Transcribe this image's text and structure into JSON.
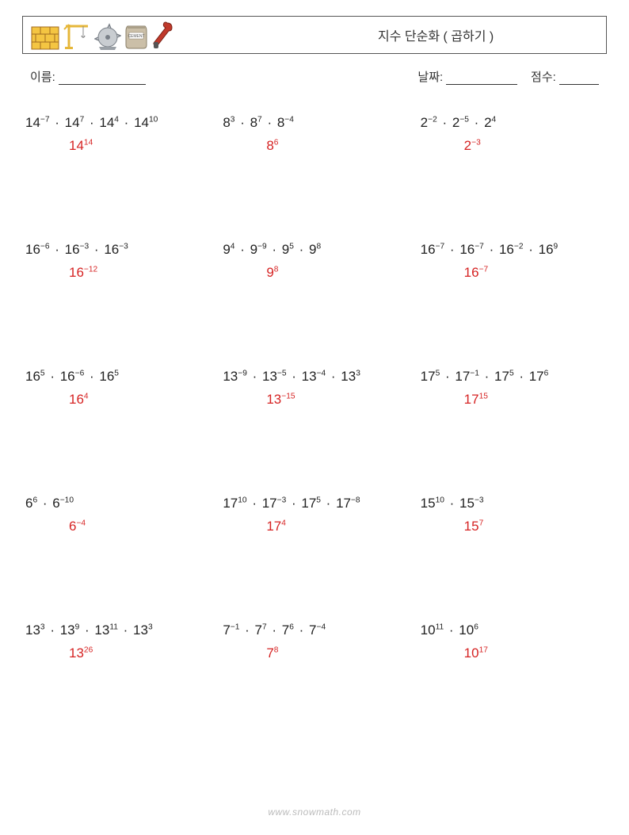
{
  "header": {
    "title": "지수 단순화 ( 곱하기 )"
  },
  "meta": {
    "nameLabel": "이름:",
    "dateLabel": "날짜:",
    "scoreLabel": "점수:"
  },
  "footer": "www.snowmath.com",
  "problems": [
    {
      "terms": [
        {
          "b": "14",
          "e": "−7"
        },
        {
          "b": "14",
          "e": "7"
        },
        {
          "b": "14",
          "e": "4"
        },
        {
          "b": "14",
          "e": "10"
        }
      ],
      "ans": {
        "b": "14",
        "e": "14"
      }
    },
    {
      "terms": [
        {
          "b": "8",
          "e": "3"
        },
        {
          "b": "8",
          "e": "7"
        },
        {
          "b": "8",
          "e": "−4"
        }
      ],
      "ans": {
        "b": "8",
        "e": "6"
      }
    },
    {
      "terms": [
        {
          "b": "2",
          "e": "−2"
        },
        {
          "b": "2",
          "e": "−5"
        },
        {
          "b": "2",
          "e": "4"
        }
      ],
      "ans": {
        "b": "2",
        "e": "−3"
      }
    },
    {
      "terms": [
        {
          "b": "16",
          "e": "−6"
        },
        {
          "b": "16",
          "e": "−3"
        },
        {
          "b": "16",
          "e": "−3"
        }
      ],
      "ans": {
        "b": "16",
        "e": "−12"
      }
    },
    {
      "terms": [
        {
          "b": "9",
          "e": "4"
        },
        {
          "b": "9",
          "e": "−9"
        },
        {
          "b": "9",
          "e": "5"
        },
        {
          "b": "9",
          "e": "8"
        }
      ],
      "ans": {
        "b": "9",
        "e": "8"
      }
    },
    {
      "terms": [
        {
          "b": "16",
          "e": "−7"
        },
        {
          "b": "16",
          "e": "−7"
        },
        {
          "b": "16",
          "e": "−2"
        },
        {
          "b": "16",
          "e": "9"
        }
      ],
      "ans": {
        "b": "16",
        "e": "−7"
      }
    },
    {
      "terms": [
        {
          "b": "16",
          "e": "5"
        },
        {
          "b": "16",
          "e": "−6"
        },
        {
          "b": "16",
          "e": "5"
        }
      ],
      "ans": {
        "b": "16",
        "e": "4"
      }
    },
    {
      "terms": [
        {
          "b": "13",
          "e": "−9"
        },
        {
          "b": "13",
          "e": "−5"
        },
        {
          "b": "13",
          "e": "−4"
        },
        {
          "b": "13",
          "e": "3"
        }
      ],
      "ans": {
        "b": "13",
        "e": "−15"
      }
    },
    {
      "terms": [
        {
          "b": "17",
          "e": "5"
        },
        {
          "b": "17",
          "e": "−1"
        },
        {
          "b": "17",
          "e": "5"
        },
        {
          "b": "17",
          "e": "6"
        }
      ],
      "ans": {
        "b": "17",
        "e": "15"
      }
    },
    {
      "terms": [
        {
          "b": "6",
          "e": "6"
        },
        {
          "b": "6",
          "e": "−10"
        }
      ],
      "ans": {
        "b": "6",
        "e": "−4"
      }
    },
    {
      "terms": [
        {
          "b": "17",
          "e": "10"
        },
        {
          "b": "17",
          "e": "−3"
        },
        {
          "b": "17",
          "e": "5"
        },
        {
          "b": "17",
          "e": "−8"
        }
      ],
      "ans": {
        "b": "17",
        "e": "4"
      }
    },
    {
      "terms": [
        {
          "b": "15",
          "e": "10"
        },
        {
          "b": "15",
          "e": "−3"
        }
      ],
      "ans": {
        "b": "15",
        "e": "7"
      }
    },
    {
      "terms": [
        {
          "b": "13",
          "e": "3"
        },
        {
          "b": "13",
          "e": "9"
        },
        {
          "b": "13",
          "e": "11"
        },
        {
          "b": "13",
          "e": "3"
        }
      ],
      "ans": {
        "b": "13",
        "e": "26"
      }
    },
    {
      "terms": [
        {
          "b": "7",
          "e": "−1"
        },
        {
          "b": "7",
          "e": "7"
        },
        {
          "b": "7",
          "e": "6"
        },
        {
          "b": "7",
          "e": "−4"
        }
      ],
      "ans": {
        "b": "7",
        "e": "8"
      }
    },
    {
      "terms": [
        {
          "b": "10",
          "e": "11"
        },
        {
          "b": "10",
          "e": "6"
        }
      ],
      "ans": {
        "b": "10",
        "e": "17"
      }
    }
  ]
}
